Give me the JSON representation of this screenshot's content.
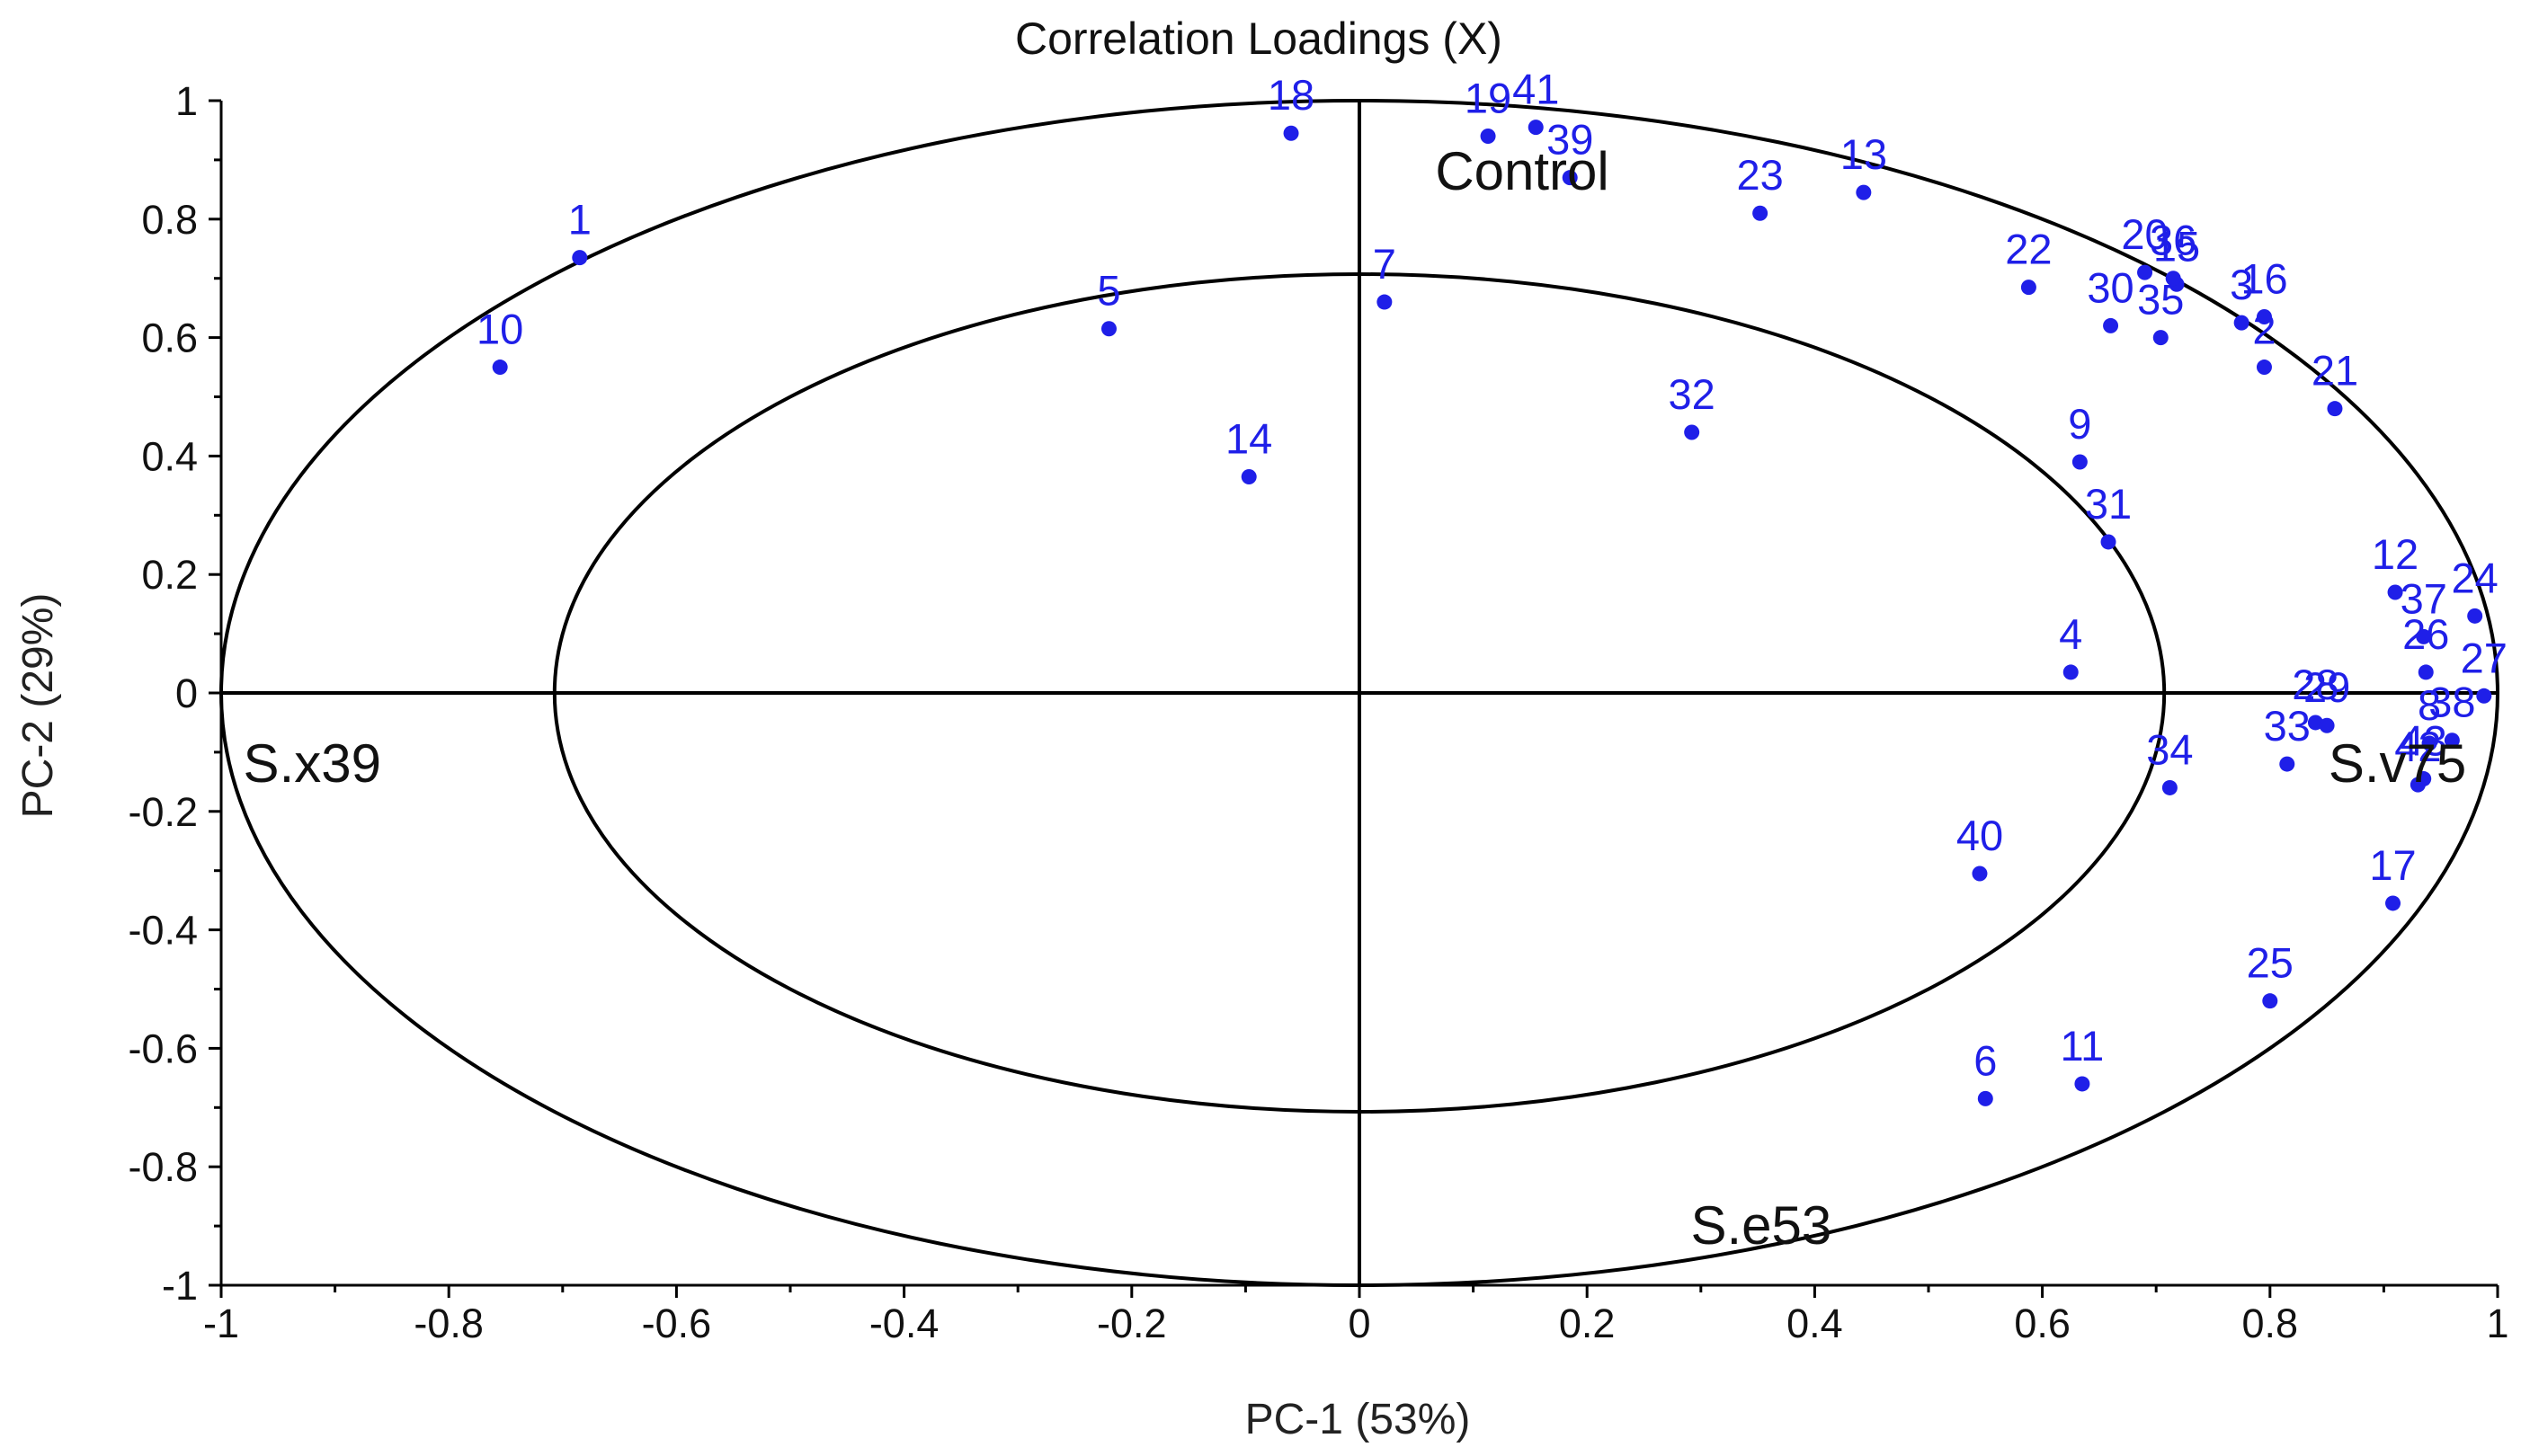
{
  "chart_data": {
    "type": "scatter",
    "title": "Correlation Loadings (X)",
    "xlabel": "PC-1 (53%)",
    "ylabel": "PC-2 (29%)",
    "xlim": [
      -1,
      1
    ],
    "ylim": [
      -1,
      1
    ],
    "x_ticks": [
      -1,
      -0.8,
      -0.6,
      -0.4,
      -0.2,
      0,
      0.2,
      0.4,
      0.6,
      0.8,
      1
    ],
    "x_tick_labels": [
      "-1",
      "-0.8",
      "-0.6",
      "-0.4",
      "-0.2",
      "0",
      "0.2",
      "0.4",
      "0.6",
      "0.8",
      "1"
    ],
    "y_ticks": [
      -1,
      -0.8,
      -0.6,
      -0.4,
      -0.2,
      0,
      0.2,
      0.4,
      0.6,
      0.8,
      1
    ],
    "y_tick_labels": [
      "-1",
      "-0.8",
      "-0.6",
      "-0.4",
      "-0.2",
      "0",
      "0.2",
      "0.4",
      "0.6",
      "0.8",
      "1"
    ],
    "ellipse_radii": [
      1.0,
      0.7071
    ],
    "point_color": "#1f1fe8",
    "line_color": "#000000",
    "points": [
      {
        "label": "1",
        "x": -0.685,
        "y": 0.735
      },
      {
        "label": "2",
        "x": 0.795,
        "y": 0.55
      },
      {
        "label": "3",
        "x": 0.775,
        "y": 0.625
      },
      {
        "label": "4",
        "x": 0.625,
        "y": 0.035
      },
      {
        "label": "5",
        "x": -0.22,
        "y": 0.615
      },
      {
        "label": "6",
        "x": 0.55,
        "y": -0.685
      },
      {
        "label": "7",
        "x": 0.022,
        "y": 0.66
      },
      {
        "label": "8",
        "x": 0.94,
        "y": -0.085
      },
      {
        "label": "9",
        "x": 0.633,
        "y": 0.39
      },
      {
        "label": "10",
        "x": -0.755,
        "y": 0.55
      },
      {
        "label": "11",
        "x": 0.635,
        "y": -0.66
      },
      {
        "label": "12",
        "x": 0.91,
        "y": 0.17
      },
      {
        "label": "13",
        "x": 0.443,
        "y": 0.845
      },
      {
        "label": "14",
        "x": -0.097,
        "y": 0.365
      },
      {
        "label": "15",
        "x": 0.718,
        "y": 0.69
      },
      {
        "label": "16",
        "x": 0.795,
        "y": 0.635
      },
      {
        "label": "17",
        "x": 0.908,
        "y": -0.355
      },
      {
        "label": "18",
        "x": -0.06,
        "y": 0.945
      },
      {
        "label": "19",
        "x": 0.113,
        "y": 0.94
      },
      {
        "label": "20",
        "x": 0.69,
        "y": 0.71
      },
      {
        "label": "21",
        "x": 0.857,
        "y": 0.48
      },
      {
        "label": "22",
        "x": 0.588,
        "y": 0.685
      },
      {
        "label": "23",
        "x": 0.352,
        "y": 0.81
      },
      {
        "label": "24",
        "x": 0.98,
        "y": 0.13
      },
      {
        "label": "25",
        "x": 0.8,
        "y": -0.52
      },
      {
        "label": "26",
        "x": 0.937,
        "y": 0.035
      },
      {
        "label": "27",
        "x": 0.988,
        "y": -0.005
      },
      {
        "label": "28",
        "x": 0.84,
        "y": -0.05
      },
      {
        "label": "29",
        "x": 0.85,
        "y": -0.055
      },
      {
        "label": "30",
        "x": 0.66,
        "y": 0.62
      },
      {
        "label": "31",
        "x": 0.658,
        "y": 0.255
      },
      {
        "label": "32",
        "x": 0.292,
        "y": 0.44
      },
      {
        "label": "33",
        "x": 0.815,
        "y": -0.12
      },
      {
        "label": "34",
        "x": 0.712,
        "y": -0.16
      },
      {
        "label": "35",
        "x": 0.704,
        "y": 0.6
      },
      {
        "label": "36",
        "x": 0.715,
        "y": 0.7
      },
      {
        "label": "37",
        "x": 0.935,
        "y": 0.095
      },
      {
        "label": "38",
        "x": 0.96,
        "y": -0.08
      },
      {
        "label": "39",
        "x": 0.185,
        "y": 0.87
      },
      {
        "label": "40",
        "x": 0.545,
        "y": -0.305
      },
      {
        "label": "41",
        "x": 0.155,
        "y": 0.955
      },
      {
        "label": "42",
        "x": 0.93,
        "y": -0.155
      },
      {
        "label": "43",
        "x": 0.935,
        "y": -0.145
      }
    ],
    "annotations": [
      {
        "label": "Control",
        "x": 0.143,
        "y": 0.88
      },
      {
        "label": "S.x39",
        "x": -0.92,
        "y": -0.12
      },
      {
        "label": "S.v75",
        "x": 0.912,
        "y": -0.12
      },
      {
        "label": "S.e53",
        "x": 0.353,
        "y": -0.9
      }
    ]
  }
}
